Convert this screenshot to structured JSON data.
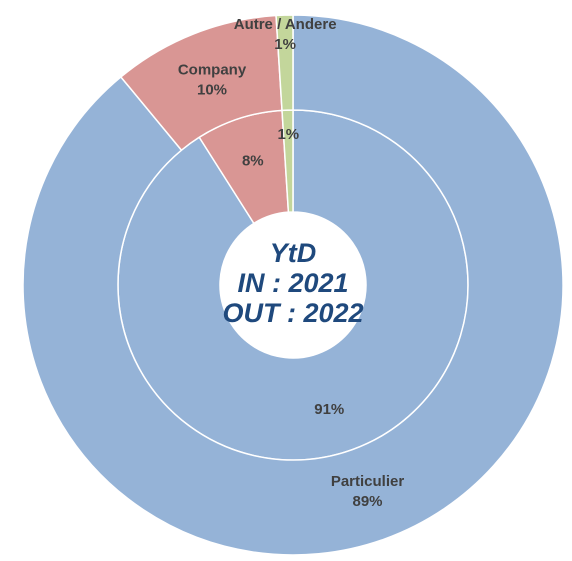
{
  "chart_data": {
    "type": "donut",
    "categories": [
      "Particulier",
      "Company",
      "Autre / Andere"
    ],
    "colors": [
      "#95b3d7",
      "#d99694",
      "#c3d69b"
    ],
    "series": [
      {
        "values": [
          91,
          8,
          1
        ],
        "value_labels": [
          "91%",
          "8%",
          "1%"
        ]
      },
      {
        "values": [
          89,
          10,
          1
        ],
        "value_labels": [
          "89%",
          "10%",
          "1%"
        ]
      }
    ],
    "center_text": [
      "YtD",
      "IN : 2021",
      "OUT : 2022"
    ]
  }
}
